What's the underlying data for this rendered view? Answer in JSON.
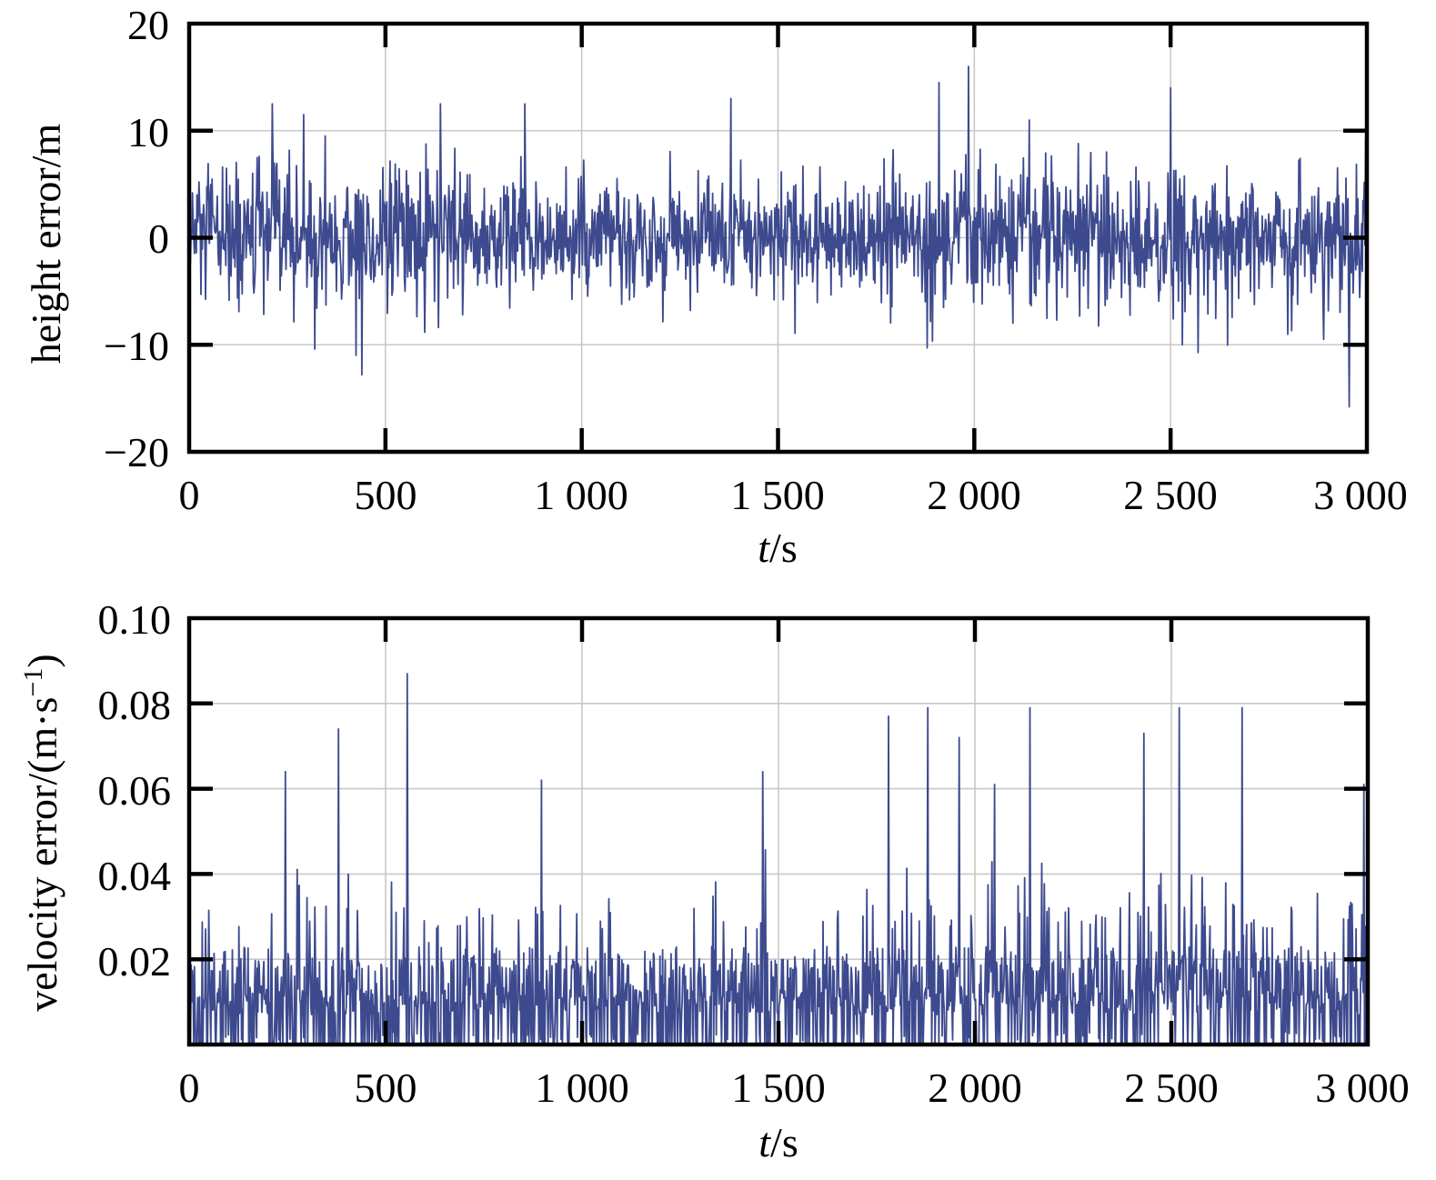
{
  "chart_data": [
    {
      "type": "line",
      "xlabel_italic": "t",
      "xlabel_rest": "/s",
      "ylabel": "height error/m",
      "xlim": [
        0,
        3000
      ],
      "ylim": [
        -20,
        20
      ],
      "grid": true,
      "series_color": "#3d4a8e",
      "x_ticks": [
        0,
        500,
        1000,
        1500,
        2000,
        2500,
        3000
      ],
      "x_tick_labels": [
        "0",
        "500",
        "1 000",
        "1 500",
        "2 000",
        "2 500",
        "3 000"
      ],
      "y_ticks": [
        -20,
        -10,
        0,
        10,
        20
      ],
      "y_tick_labels": [
        "−20",
        "−10",
        "0",
        "10",
        "20"
      ],
      "signal": {
        "samples": 1800,
        "sample_step_s": 1.6667,
        "noise_std": 3.4,
        "envelope_x": [
          0,
          250,
          400,
          600,
          800,
          1000,
          1100,
          1200,
          1500,
          1800,
          2000,
          2200,
          2500,
          2800,
          3000
        ],
        "envelope_scale": [
          1.05,
          1.0,
          0.95,
          1.0,
          0.85,
          0.7,
          0.75,
          0.8,
          0.85,
          0.85,
          1.05,
          1.0,
          1.0,
          0.95,
          1.0
        ],
        "peaks": [
          {
            "x": 212,
            "y": 12.5
          },
          {
            "x": 292,
            "y": 11.5
          },
          {
            "x": 440,
            "y": -12.8
          },
          {
            "x": 425,
            "y": -11.0
          },
          {
            "x": 640,
            "y": 12.5
          },
          {
            "x": 855,
            "y": 12.5
          },
          {
            "x": 1380,
            "y": 13.0
          },
          {
            "x": 1910,
            "y": 14.5
          },
          {
            "x": 1985,
            "y": 16.0
          },
          {
            "x": 2140,
            "y": 11.0
          },
          {
            "x": 2500,
            "y": 14.0
          },
          {
            "x": 2955,
            "y": -15.8
          },
          {
            "x": 1880,
            "y": -10.3
          },
          {
            "x": 2530,
            "y": -10.0
          },
          {
            "x": 320,
            "y": -10.4
          }
        ]
      }
    },
    {
      "type": "line",
      "xlabel_italic": "t",
      "xlabel_rest": "/s",
      "ylabel_main": "velocity error/(m·s",
      "ylabel_sup": "−1",
      "ylabel_close": ")",
      "xlim": [
        0,
        3000
      ],
      "ylim": [
        0,
        0.1
      ],
      "grid": true,
      "series_color": "#3d4a8e",
      "x_ticks": [
        0,
        500,
        1000,
        1500,
        2000,
        2500,
        3000
      ],
      "x_tick_labels": [
        "0",
        "500",
        "1 000",
        "1 500",
        "2 000",
        "2 500",
        "3 000"
      ],
      "y_ticks": [
        0.02,
        0.04,
        0.06,
        0.08,
        0.1
      ],
      "y_tick_labels": [
        "0.02",
        "0.04",
        "0.06",
        "0.08",
        "0.10"
      ],
      "signal": {
        "samples": 1800,
        "sample_step_s": 1.6667,
        "noise_std": 0.0125,
        "envelope_x": [
          0,
          300,
          600,
          900,
          1200,
          1300,
          1500,
          1800,
          2000,
          2300,
          2500,
          2800,
          3000
        ],
        "envelope_scale": [
          0.9,
          1.0,
          1.0,
          0.95,
          0.85,
          0.95,
          1.05,
          1.0,
          1.1,
          1.05,
          1.2,
          1.15,
          1.15
        ],
        "peaks": [
          {
            "x": 555,
            "y": 0.087
          },
          {
            "x": 380,
            "y": 0.074
          },
          {
            "x": 245,
            "y": 0.064
          },
          {
            "x": 897,
            "y": 0.062
          },
          {
            "x": 1780,
            "y": 0.077
          },
          {
            "x": 1880,
            "y": 0.079
          },
          {
            "x": 2140,
            "y": 0.079
          },
          {
            "x": 2520,
            "y": 0.079
          },
          {
            "x": 2680,
            "y": 0.079
          },
          {
            "x": 1460,
            "y": 0.064
          },
          {
            "x": 2430,
            "y": 0.073
          },
          {
            "x": 2990,
            "y": 0.061
          },
          {
            "x": 1960,
            "y": 0.072
          },
          {
            "x": 2050,
            "y": 0.061
          }
        ]
      }
    }
  ]
}
